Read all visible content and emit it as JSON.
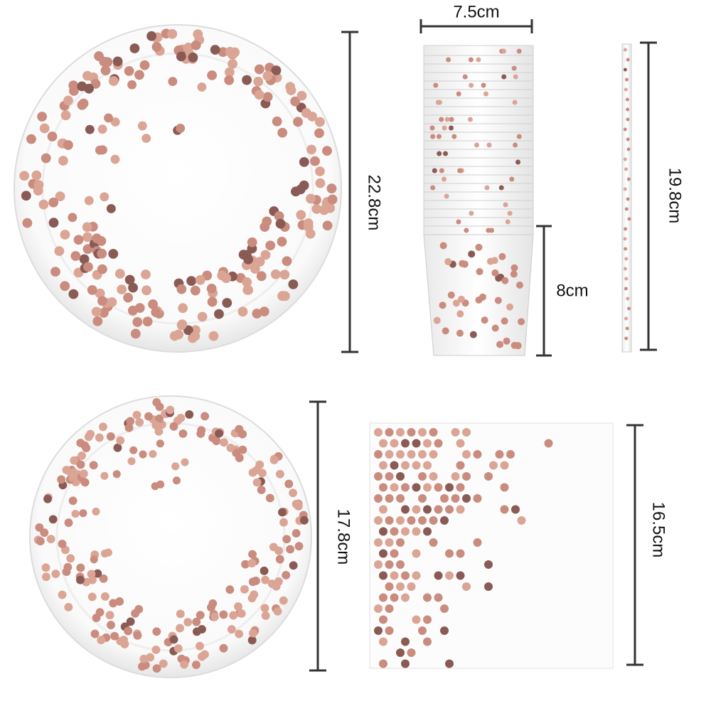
{
  "dimensions": {
    "large_plate_diameter": "22.8cm",
    "cup_width": "7.5cm",
    "cup_height": "8cm",
    "straw_length": "19.8cm",
    "small_plate_diameter": "17.8cm",
    "napkin_size": "16.5cm"
  }
}
